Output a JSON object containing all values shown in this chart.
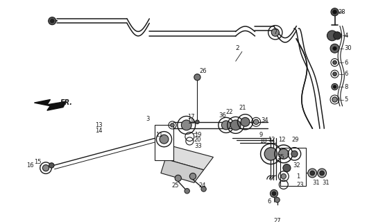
{
  "bg_color": "#ffffff",
  "fg_color": "#1a1a1a",
  "figsize": [
    5.55,
    3.2
  ],
  "dpi": 100
}
